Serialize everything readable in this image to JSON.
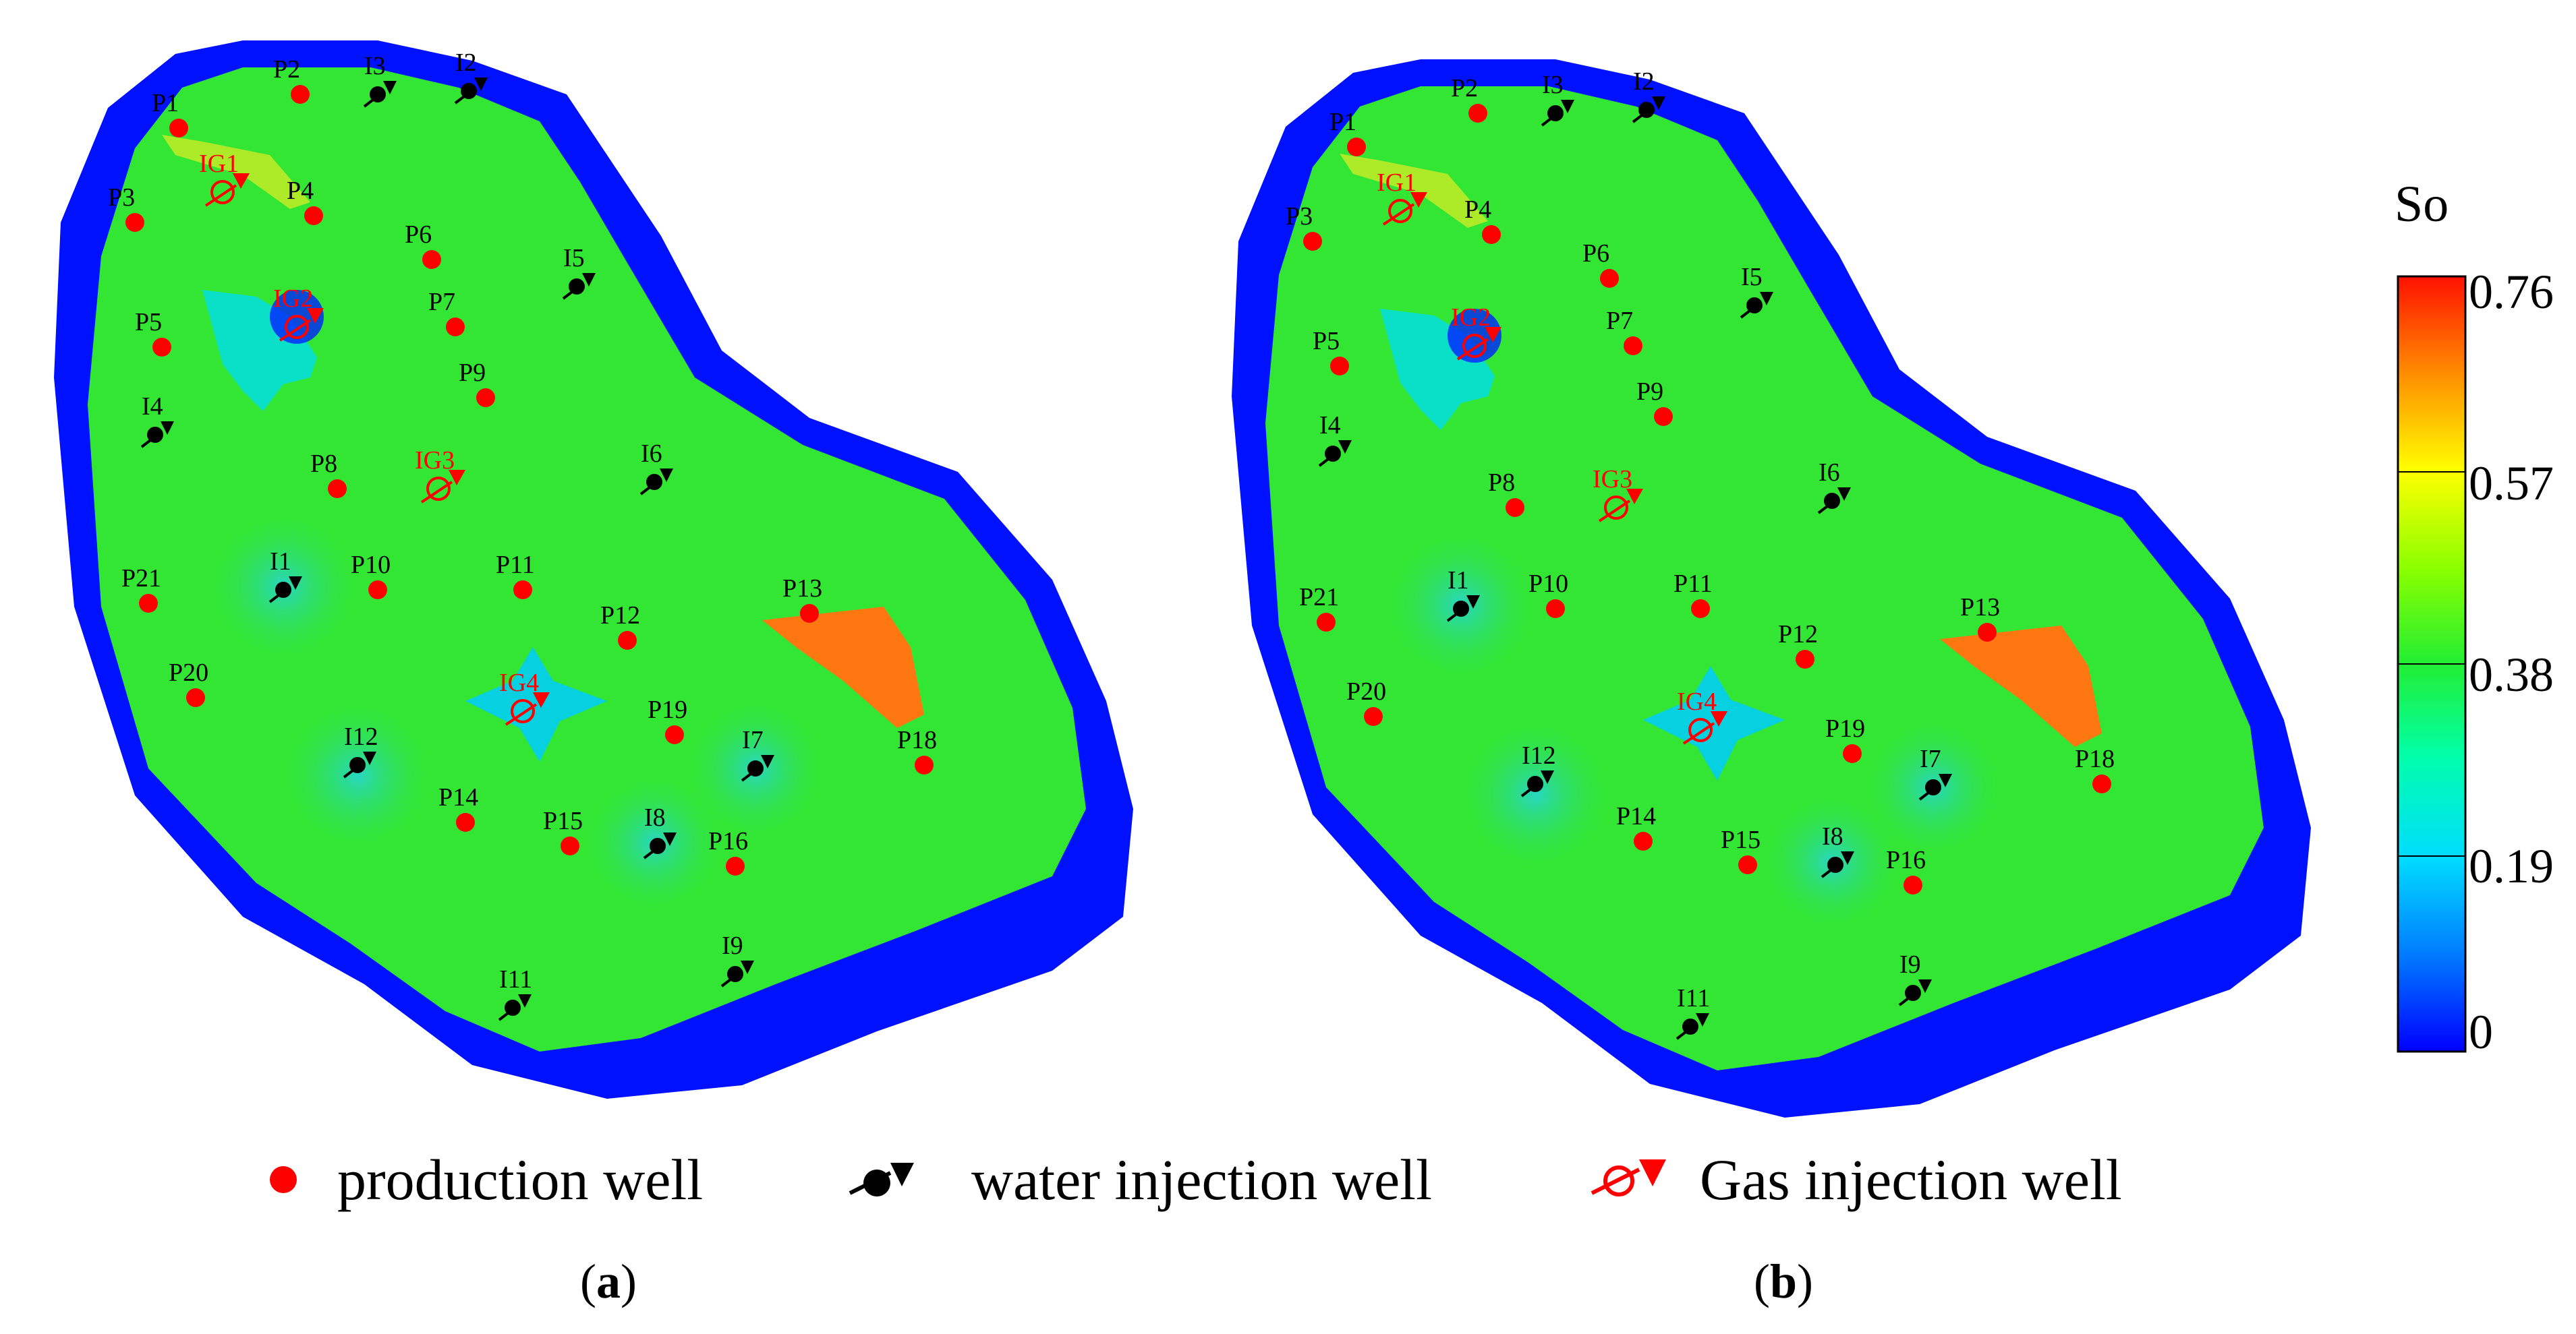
{
  "colorbar": {
    "title": "So",
    "ticks": [
      "0.76",
      "0.57",
      "0.38",
      "0.19",
      "0"
    ],
    "min": 0,
    "max": 0.76,
    "colors": [
      "#0000ff",
      "#00aaff",
      "#00ffff",
      "#00ff66",
      "#33dd22",
      "#aaff00",
      "#ffff00",
      "#ff9900",
      "#ff3300"
    ]
  },
  "legend": {
    "production": "production well",
    "water": "water injection well",
    "gas": "Gas injection well"
  },
  "panels": [
    {
      "id": "a",
      "open": "(",
      "label": "a",
      "close": ")"
    },
    {
      "id": "b",
      "open": "(",
      "label": "b",
      "close": ")"
    }
  ],
  "colors": {
    "production_well": "#ff0000",
    "water_well": "#000000",
    "gas_well": "#ff0000",
    "boundary": "#0011ff",
    "field": "#33e633"
  },
  "wells": {
    "production": [
      "P1",
      "P2",
      "P3",
      "P4",
      "P5",
      "P6",
      "P7",
      "P8",
      "P9",
      "P10",
      "P11",
      "P12",
      "P13",
      "P14",
      "P15",
      "P16",
      "P18",
      "P19",
      "P20",
      "P21"
    ],
    "water": [
      "I1",
      "I2",
      "I3",
      "I4",
      "I5",
      "I6",
      "I7",
      "I8",
      "I9",
      "I11",
      "I12"
    ],
    "gas": [
      "IG1",
      "IG2",
      "IG3",
      "IG4"
    ]
  }
}
